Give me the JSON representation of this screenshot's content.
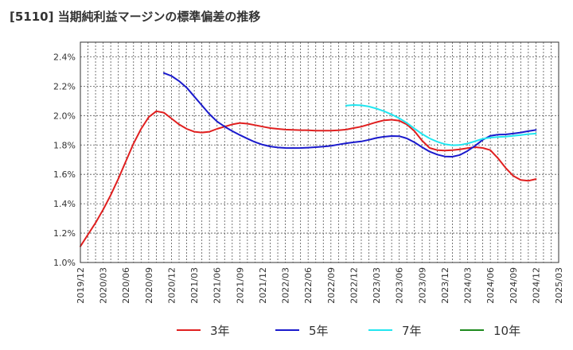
{
  "chart_data": {
    "type": "line",
    "title": "[5110]  当期純利益マージンの標準偏差の推移",
    "xlabel": "",
    "ylabel": "",
    "y_unit": "%",
    "ylim": [
      1.0,
      2.5
    ],
    "yticks": [
      1.0,
      1.2,
      1.4,
      1.6,
      1.8,
      2.0,
      2.2,
      2.4
    ],
    "ytick_labels": [
      "1.0%",
      "1.2%",
      "1.4%",
      "1.6%",
      "1.8%",
      "2.0%",
      "2.2%",
      "2.4%"
    ],
    "xlim": [
      "2019-12",
      "2025-03"
    ],
    "xtick_labels": [
      "2019/12",
      "2020/03",
      "2020/06",
      "2020/09",
      "2020/12",
      "2021/03",
      "2021/06",
      "2021/09",
      "2021/12",
      "2022/03",
      "2022/06",
      "2022/09",
      "2022/12",
      "2023/03",
      "2023/06",
      "2023/09",
      "2023/12",
      "2024/03",
      "2024/06",
      "2024/09",
      "2024/12",
      "2025/03"
    ],
    "grid": true,
    "legend_position": "bottom",
    "series": [
      {
        "name": "3年",
        "color": "#e02020",
        "points": [
          [
            "2019-12",
            1.11
          ],
          [
            "2020-01",
            1.19
          ],
          [
            "2020-02",
            1.27
          ],
          [
            "2020-03",
            1.36
          ],
          [
            "2020-04",
            1.46
          ],
          [
            "2020-05",
            1.57
          ],
          [
            "2020-06",
            1.69
          ],
          [
            "2020-07",
            1.81
          ],
          [
            "2020-08",
            1.91
          ],
          [
            "2020-09",
            1.99
          ],
          [
            "2020-10",
            2.03
          ],
          [
            "2020-11",
            2.02
          ],
          [
            "2020-12",
            1.98
          ],
          [
            "2021-01",
            1.94
          ],
          [
            "2021-02",
            1.91
          ],
          [
            "2021-03",
            1.89
          ],
          [
            "2021-04",
            1.885
          ],
          [
            "2021-05",
            1.89
          ],
          [
            "2021-06",
            1.91
          ],
          [
            "2021-07",
            1.925
          ],
          [
            "2021-08",
            1.94
          ],
          [
            "2021-09",
            1.95
          ],
          [
            "2021-10",
            1.945
          ],
          [
            "2021-11",
            1.935
          ],
          [
            "2021-12",
            1.925
          ],
          [
            "2022-01",
            1.915
          ],
          [
            "2022-02",
            1.91
          ],
          [
            "2022-03",
            1.905
          ],
          [
            "2022-04",
            1.903
          ],
          [
            "2022-05",
            1.901
          ],
          [
            "2022-06",
            1.9
          ],
          [
            "2022-07",
            1.898
          ],
          [
            "2022-08",
            1.898
          ],
          [
            "2022-09",
            1.898
          ],
          [
            "2022-10",
            1.9
          ],
          [
            "2022-11",
            1.905
          ],
          [
            "2022-12",
            1.915
          ],
          [
            "2023-01",
            1.925
          ],
          [
            "2023-02",
            1.94
          ],
          [
            "2023-03",
            1.955
          ],
          [
            "2023-04",
            1.968
          ],
          [
            "2023-05",
            1.972
          ],
          [
            "2023-06",
            1.965
          ],
          [
            "2023-07",
            1.94
          ],
          [
            "2023-08",
            1.895
          ],
          [
            "2023-09",
            1.83
          ],
          [
            "2023-10",
            1.78
          ],
          [
            "2023-11",
            1.765
          ],
          [
            "2023-12",
            1.762
          ],
          [
            "2024-01",
            1.765
          ],
          [
            "2024-02",
            1.77
          ],
          [
            "2024-03",
            1.778
          ],
          [
            "2024-04",
            1.785
          ],
          [
            "2024-05",
            1.78
          ],
          [
            "2024-06",
            1.765
          ],
          [
            "2024-07",
            1.71
          ],
          [
            "2024-08",
            1.645
          ],
          [
            "2024-09",
            1.59
          ],
          [
            "2024-10",
            1.562
          ],
          [
            "2024-11",
            1.556
          ],
          [
            "2024-12",
            1.568
          ]
        ]
      },
      {
        "name": "5年",
        "color": "#1a1acc",
        "points": [
          [
            "2020-11",
            2.29
          ],
          [
            "2020-12",
            2.27
          ],
          [
            "2021-01",
            2.235
          ],
          [
            "2021-02",
            2.19
          ],
          [
            "2021-03",
            2.13
          ],
          [
            "2021-04",
            2.07
          ],
          [
            "2021-05",
            2.01
          ],
          [
            "2021-06",
            1.96
          ],
          [
            "2021-07",
            1.925
          ],
          [
            "2021-08",
            1.895
          ],
          [
            "2021-09",
            1.868
          ],
          [
            "2021-10",
            1.843
          ],
          [
            "2021-11",
            1.82
          ],
          [
            "2021-12",
            1.802
          ],
          [
            "2022-01",
            1.79
          ],
          [
            "2022-02",
            1.783
          ],
          [
            "2022-03",
            1.78
          ],
          [
            "2022-04",
            1.779
          ],
          [
            "2022-05",
            1.78
          ],
          [
            "2022-06",
            1.782
          ],
          [
            "2022-07",
            1.785
          ],
          [
            "2022-08",
            1.789
          ],
          [
            "2022-09",
            1.794
          ],
          [
            "2022-10",
            1.803
          ],
          [
            "2022-11",
            1.812
          ],
          [
            "2022-12",
            1.818
          ],
          [
            "2023-01",
            1.824
          ],
          [
            "2023-02",
            1.835
          ],
          [
            "2023-03",
            1.848
          ],
          [
            "2023-04",
            1.856
          ],
          [
            "2023-05",
            1.861
          ],
          [
            "2023-06",
            1.86
          ],
          [
            "2023-07",
            1.845
          ],
          [
            "2023-08",
            1.818
          ],
          [
            "2023-09",
            1.785
          ],
          [
            "2023-10",
            1.755
          ],
          [
            "2023-11",
            1.735
          ],
          [
            "2023-12",
            1.722
          ],
          [
            "2024-01",
            1.72
          ],
          [
            "2024-02",
            1.732
          ],
          [
            "2024-03",
            1.76
          ],
          [
            "2024-04",
            1.795
          ],
          [
            "2024-05",
            1.835
          ],
          [
            "2024-06",
            1.862
          ],
          [
            "2024-07",
            1.87
          ],
          [
            "2024-08",
            1.872
          ],
          [
            "2024-09",
            1.878
          ],
          [
            "2024-10",
            1.885
          ],
          [
            "2024-11",
            1.894
          ],
          [
            "2024-12",
            1.902
          ]
        ]
      },
      {
        "name": "7年",
        "color": "#22e6f0",
        "points": [
          [
            "2022-11",
            2.068
          ],
          [
            "2022-12",
            2.072
          ],
          [
            "2023-01",
            2.07
          ],
          [
            "2023-02",
            2.062
          ],
          [
            "2023-03",
            2.048
          ],
          [
            "2023-04",
            2.03
          ],
          [
            "2023-05",
            2.008
          ],
          [
            "2023-06",
            1.982
          ],
          [
            "2023-07",
            1.95
          ],
          [
            "2023-08",
            1.912
          ],
          [
            "2023-09",
            1.875
          ],
          [
            "2023-10",
            1.845
          ],
          [
            "2023-11",
            1.822
          ],
          [
            "2023-12",
            1.806
          ],
          [
            "2024-01",
            1.798
          ],
          [
            "2024-02",
            1.8
          ],
          [
            "2024-03",
            1.81
          ],
          [
            "2024-04",
            1.826
          ],
          [
            "2024-05",
            1.842
          ],
          [
            "2024-06",
            1.85
          ],
          [
            "2024-07",
            1.854
          ],
          [
            "2024-08",
            1.857
          ],
          [
            "2024-09",
            1.862
          ],
          [
            "2024-10",
            1.868
          ],
          [
            "2024-11",
            1.874
          ],
          [
            "2024-12",
            1.878
          ]
        ]
      },
      {
        "name": "10年",
        "color": "#1e8a1e",
        "points": []
      }
    ]
  }
}
